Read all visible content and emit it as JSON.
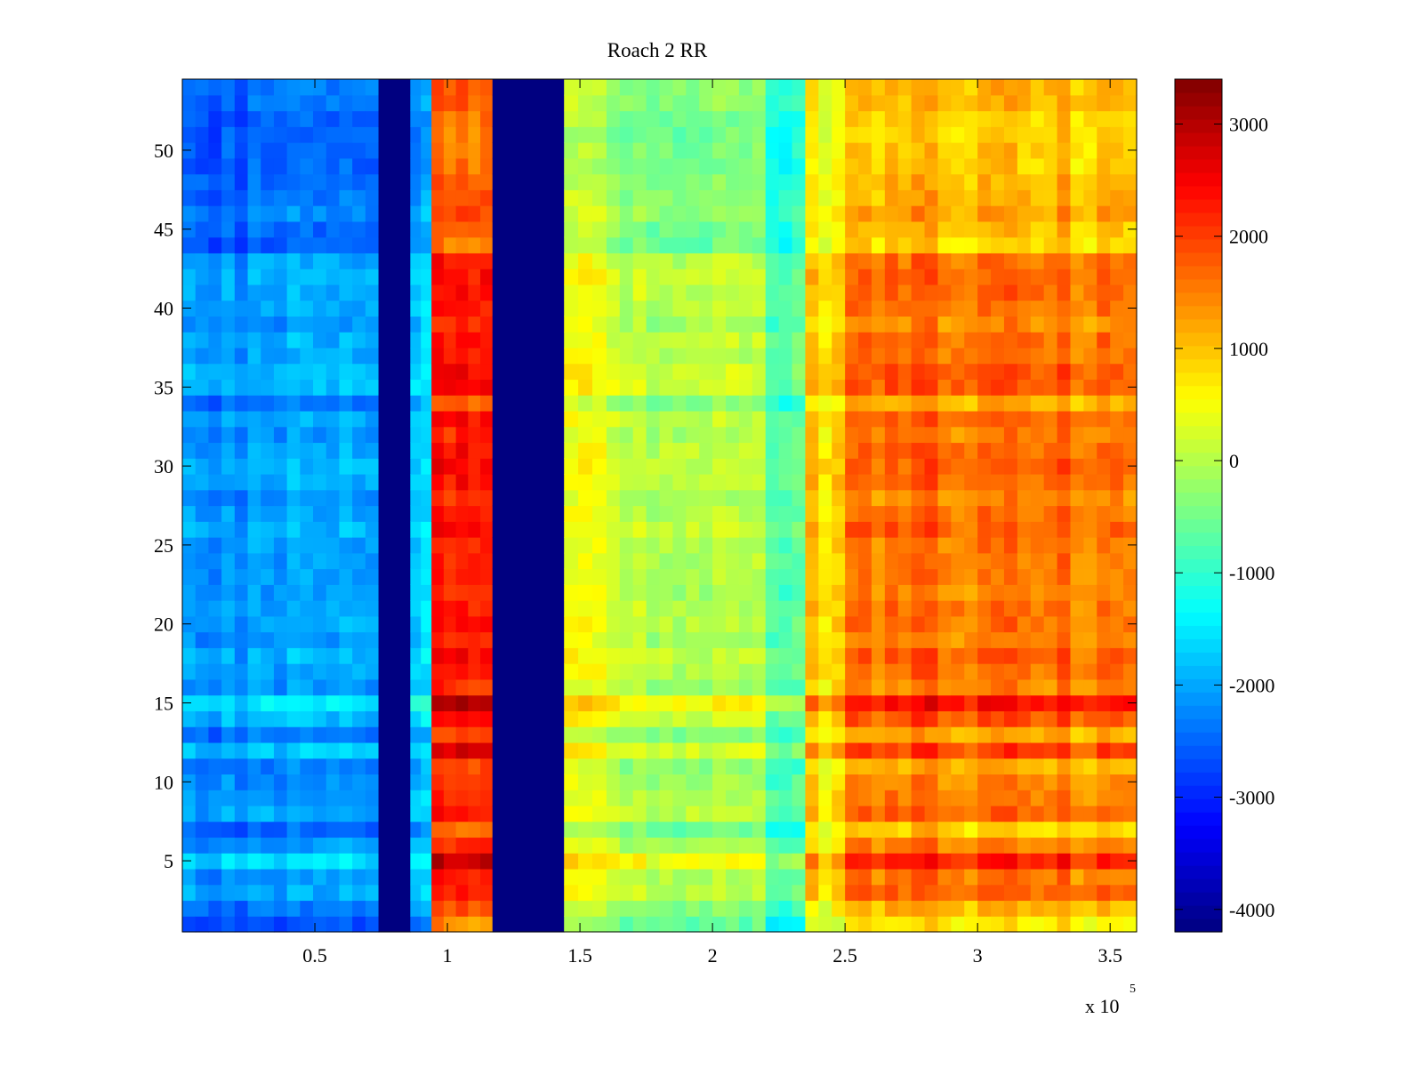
{
  "chart_data": {
    "type": "heatmap",
    "title": "Roach 2 RR",
    "xlabel": "",
    "ylabel": "",
    "x_multiplier_label": "x 10",
    "x_multiplier_exponent": "5",
    "xlim": [
      0.0,
      3.6
    ],
    "ylim": [
      0.5,
      54.5
    ],
    "x_ticks": [
      0.5,
      1,
      1.5,
      2,
      2.5,
      3,
      3.5
    ],
    "x_tick_labels": [
      "0.5",
      "1",
      "1.5",
      "2",
      "2.5",
      "3",
      "3.5"
    ],
    "y_ticks": [
      5,
      10,
      15,
      20,
      25,
      30,
      35,
      40,
      45,
      50
    ],
    "y_tick_labels": [
      "5",
      "10",
      "15",
      "20",
      "25",
      "30",
      "35",
      "40",
      "45",
      "50"
    ],
    "colormap": "jet",
    "colorbar": {
      "range": [
        -4200,
        3400
      ],
      "ticks": [
        -4000,
        -3000,
        -2000,
        -1000,
        0,
        1000,
        2000,
        3000
      ],
      "tick_labels": [
        "-4000",
        "-3000",
        "-2000",
        "-1000",
        "0",
        "1000",
        "2000",
        "3000"
      ]
    },
    "rows": 54,
    "column_bands": [
      {
        "x_start": 0.0,
        "x_end": 0.74,
        "base_value": -2300
      },
      {
        "x_start": 0.74,
        "x_end": 0.86,
        "base_value": -4200
      },
      {
        "x_start": 0.86,
        "x_end": 0.94,
        "base_value": -1900
      },
      {
        "x_start": 0.94,
        "x_end": 1.17,
        "base_value": 1900
      },
      {
        "x_start": 1.17,
        "x_end": 1.44,
        "base_value": -4200
      },
      {
        "x_start": 1.44,
        "x_end": 1.6,
        "base_value": 300
      },
      {
        "x_start": 1.6,
        "x_end": 1.85,
        "base_value": -100
      },
      {
        "x_start": 1.85,
        "x_end": 2.2,
        "base_value": -250
      },
      {
        "x_start": 2.2,
        "x_end": 2.35,
        "base_value": -700
      },
      {
        "x_start": 2.35,
        "x_end": 2.5,
        "base_value": 700
      },
      {
        "x_start": 2.5,
        "x_end": 3.6,
        "base_value": 1350
      }
    ],
    "row_pattern": [
      -450,
      -150,
      250,
      150,
      600,
      100,
      -300,
      250,
      150,
      50,
      -100,
      450,
      -100,
      350,
      750,
      50,
      200,
      300,
      100,
      200,
      200,
      100,
      150,
      150,
      150,
      300,
      200,
      50,
      250,
      300,
      250,
      100,
      250,
      -150,
      350,
      350,
      200,
      250,
      50,
      200,
      250,
      250,
      200,
      -350,
      -250,
      -50,
      -150,
      -200,
      -300,
      -300,
      -350,
      -300,
      -150,
      -150
    ]
  }
}
